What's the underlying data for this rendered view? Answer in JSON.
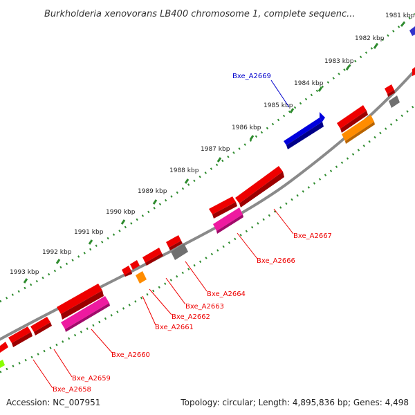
{
  "title": "Burkholderia xenovorans LB400 chromosome 1, complete sequenc...",
  "ticks": [
    "1981 kbp",
    "1982 kbp",
    "1983 kbp",
    "1984 kbp",
    "1985 kbp",
    "1986 kbp",
    "1987 kbp",
    "1988 kbp",
    "1989 kbp",
    "1990 kbp",
    "1991 kbp",
    "1992 kbp",
    "1993 kbp"
  ],
  "gene_labels": [
    "Bxe_A2669",
    "Bxe_A2667",
    "Bxe_A2666",
    "Bxe_A2664",
    "Bxe_A2663",
    "Bxe_A2662",
    "Bxe_A2661",
    "Bxe_A2660",
    "Bxe_A2659",
    "Bxe_A2658"
  ],
  "footer": {
    "accession": "Accession: NC_007951",
    "topology": "Topology: circular; Length: 4,895,836 bp; Genes: 4,498"
  },
  "colors": {
    "backbone": "#8a8a8a",
    "tick": "#2e8b2e",
    "gene_red": "#ee0000",
    "gene_blue": "#0000dd",
    "gene_orange": "#ff8c00",
    "gene_magenta": "#ee1aa0",
    "gene_gray": "#707070",
    "gene_lime": "#88ff00",
    "label_blue": "#0000cc",
    "label_red": "#ee0000"
  }
}
